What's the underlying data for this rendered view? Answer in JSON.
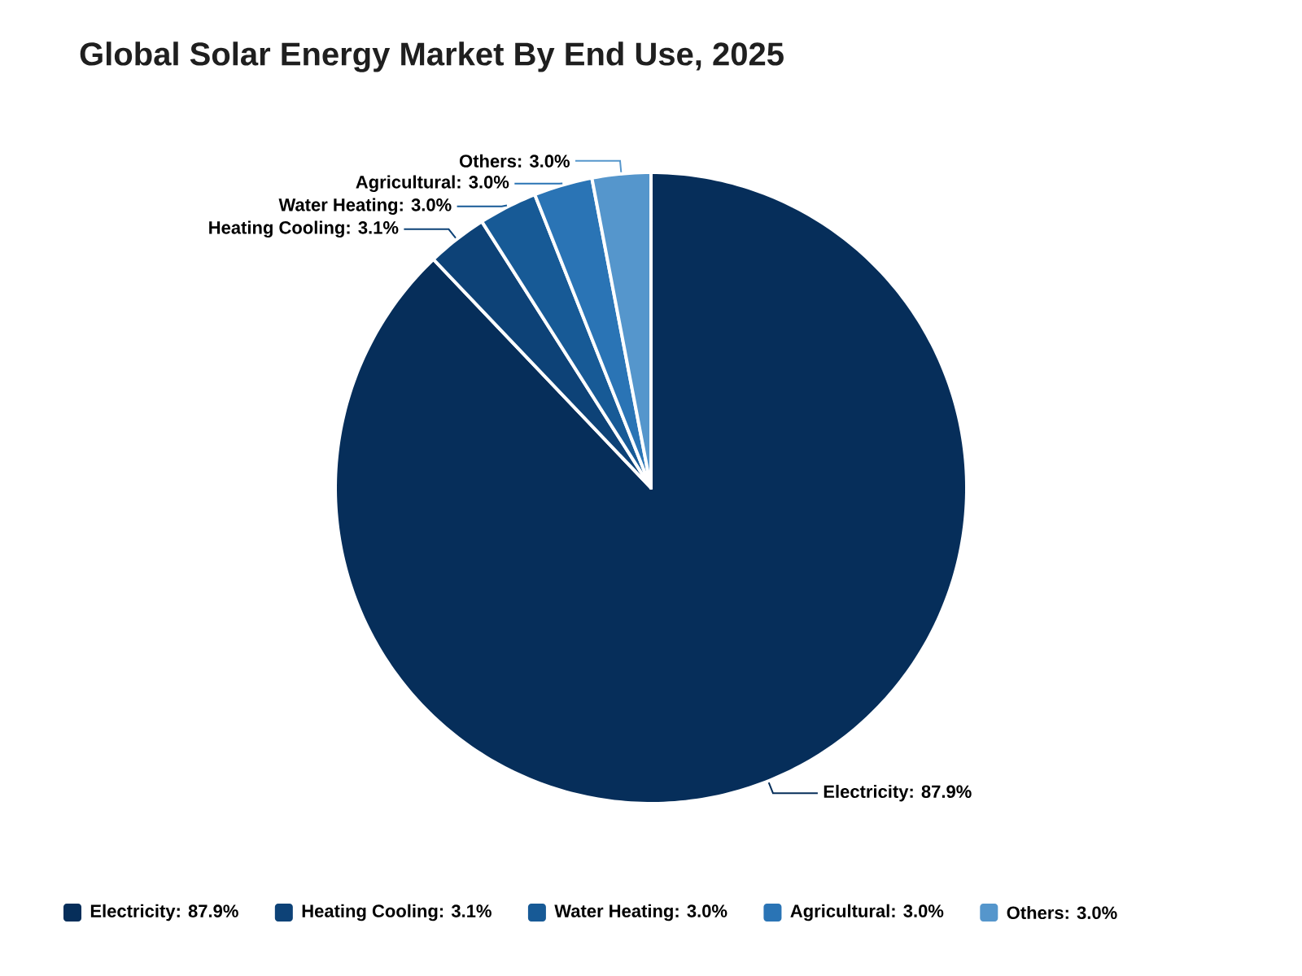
{
  "chart_data": {
    "type": "pie",
    "title": "Global Solar Energy Market By End Use, 2025",
    "categories": [
      "Electricity: 87.9%",
      "Heating Cooling: 3.1%",
      "Water Heating: 3.0%",
      "Agricultural: 3.0%",
      "Others: 3.0%"
    ],
    "values": [
      87.9,
      3.1,
      3.0,
      3.0,
      3.0
    ],
    "colors": [
      "#062e5a",
      "#0d4277",
      "#175a96",
      "#2a74b5",
      "#5596cc"
    ],
    "legend": "bottom"
  }
}
